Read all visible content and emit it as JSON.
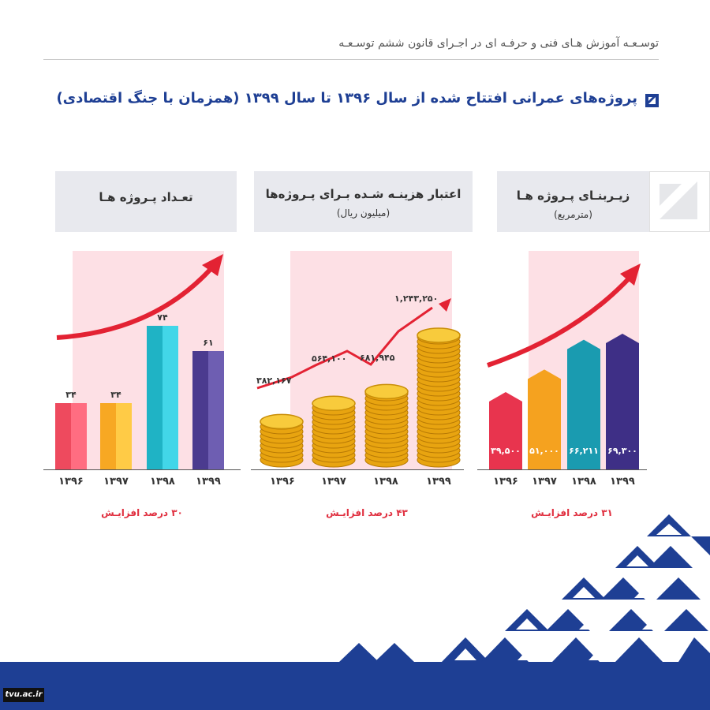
{
  "header": {
    "text": "توسـعـه آموزش هـای فنی و حرفـه ای در اجـرای قانون ششم توسـعـه"
  },
  "title": "پروژه‌های عمرانی افتتاح شده از سال ۱۳۹۶ تا سال ۱۳۹۹ (همزمان با جنگ اقتصادی)",
  "colors": {
    "brand": "#1e3f94",
    "accent": "#e03040",
    "panel": "#e8e9ee",
    "pink": "#fde0e5"
  },
  "footer": {
    "site": "tvu.ac.ir"
  },
  "panels": {
    "count": {
      "title": "تعـداد پـروژه هـا",
      "increase": "۳۰ درصد افزایـش"
    },
    "budget": {
      "title": "اعتبار هزینـه شـده بـرای پـروژه‌ها",
      "subtitle": "(میلیون ریال)",
      "increase": "۴۳ درصد افزایـش"
    },
    "area": {
      "title": "زیـربنـای پـروژه هـا",
      "subtitle": "(مترمربع)",
      "increase": "۳۱ درصد افزایـش"
    }
  },
  "chart_data": [
    {
      "type": "bar",
      "title": "تعـداد پـروژه هـا",
      "categories": [
        "۱۳۹۶",
        "۱۳۹۷",
        "۱۳۹۸",
        "۱۳۹۹"
      ],
      "values": [
        34,
        34,
        74,
        61
      ],
      "value_labels": [
        "۳۴",
        "۳۴",
        "۷۴",
        "۶۱"
      ],
      "colors": [
        "#ee4a5e",
        "#f7a823",
        "#1fb3c5",
        "#4b3b8f"
      ]
    },
    {
      "type": "line",
      "title": "اعتبار هزینـه شـده بـرای پـروژه‌ها",
      "subtitle": "(میلیون ریال)",
      "categories": [
        "۱۳۹۶",
        "۱۳۹۷",
        "۱۳۹۸",
        "۱۳۹۹"
      ],
      "values": [
        382167,
        564100,
        681945,
        1243250
      ],
      "value_labels": [
        "۳۸۲,۱۶۷",
        "۵۶۴,۱۰۰",
        "۶۸۱,۹۴۵",
        "۱,۲۴۳,۲۵۰"
      ]
    },
    {
      "type": "bar",
      "title": "زیـربنـای پـروژه هـا",
      "subtitle": "(مترمربع)",
      "categories": [
        "۱۳۹۶",
        "۱۳۹۷",
        "۱۳۹۸",
        "۱۳۹۹"
      ],
      "values": [
        39500,
        51000,
        66211,
        69300
      ],
      "value_labels": [
        "۳۹,۵۰۰",
        "۵۱,۰۰۰",
        "۶۶,۲۱۱",
        "۶۹,۳۰۰"
      ],
      "colors": [
        "#e8344e",
        "#f5a21f",
        "#1a9bb0",
        "#3e2f86"
      ]
    }
  ]
}
